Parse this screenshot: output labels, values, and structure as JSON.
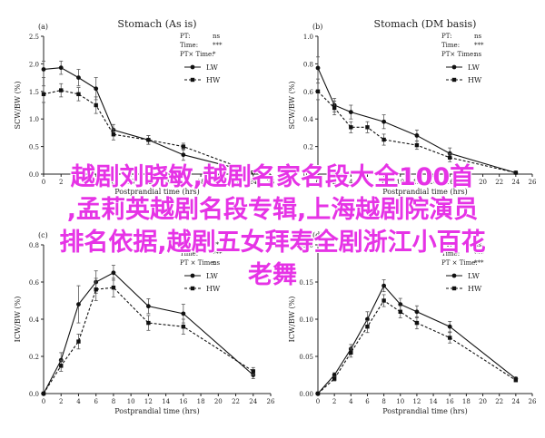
{
  "chart_data": [
    {
      "type": "line",
      "panel_label": "(a)",
      "title": "Stomach (As is)",
      "xlabel": "Postprandial time (hrs)",
      "ylabel": "SCW/BW (%)",
      "xlim": [
        0,
        26
      ],
      "ylim": [
        0,
        2.5
      ],
      "xticks": [
        0,
        2,
        4,
        6,
        8,
        10,
        12,
        14,
        16,
        18,
        20,
        22,
        24,
        26
      ],
      "yticks": [
        "0.0",
        "0.5",
        "1.0",
        "1.5",
        "2.0",
        "2.5"
      ],
      "stats": [
        {
          "label": "PT:",
          "value": "ns"
        },
        {
          "label": "Time:",
          "value": "***"
        },
        {
          "label": "PT× Time:",
          "value": "*"
        }
      ],
      "legend_position": "top-right",
      "series": [
        {
          "name": "LW",
          "style": "solid",
          "marker": "circle",
          "x": [
            0,
            2,
            4,
            6,
            8,
            12,
            16,
            24
          ],
          "y": [
            1.9,
            1.93,
            1.75,
            1.55,
            0.8,
            0.62,
            0.35,
            0.03
          ],
          "err": [
            0.15,
            0.12,
            0.15,
            0.2,
            0.1,
            0.08,
            0.1,
            0.02
          ]
        },
        {
          "name": "HW",
          "style": "dashed",
          "marker": "square",
          "x": [
            0,
            2,
            4,
            6,
            8,
            12,
            16,
            24
          ],
          "y": [
            1.45,
            1.52,
            1.45,
            1.25,
            0.72,
            0.62,
            0.5,
            0.03
          ],
          "err": [
            0.15,
            0.12,
            0.12,
            0.15,
            0.1,
            0.08,
            0.06,
            0.02
          ]
        }
      ]
    },
    {
      "type": "line",
      "panel_label": "(b)",
      "title": "Stomach (DM basis)",
      "xlabel": "Postprandial time (hrs)",
      "ylabel": "SCW/BW (%)",
      "xlim": [
        0,
        26
      ],
      "ylim": [
        0,
        1.0
      ],
      "xticks": [
        0,
        2,
        4,
        6,
        8,
        10,
        12,
        14,
        16,
        18,
        20,
        22,
        24,
        26
      ],
      "yticks": [
        "0.0",
        "0.2",
        "0.4",
        "0.6",
        "0.8",
        "1.0"
      ],
      "stats": [
        {
          "label": "PT:",
          "value": "ns"
        },
        {
          "label": "Time:",
          "value": "***"
        },
        {
          "label": "PT× Time:",
          "value": "ns"
        }
      ],
      "legend_position": "top-right",
      "series": [
        {
          "name": "LW",
          "style": "solid",
          "marker": "circle",
          "x": [
            0,
            2,
            4,
            8,
            12,
            16,
            24
          ],
          "y": [
            0.77,
            0.5,
            0.45,
            0.38,
            0.28,
            0.15,
            0.01
          ],
          "err": [
            0.08,
            0.05,
            0.05,
            0.05,
            0.04,
            0.04,
            0.01
          ]
        },
        {
          "name": "HW",
          "style": "dashed",
          "marker": "square",
          "x": [
            0,
            2,
            4,
            6,
            8,
            12,
            16,
            24
          ],
          "y": [
            0.6,
            0.48,
            0.34,
            0.34,
            0.25,
            0.21,
            0.12,
            0.01
          ],
          "err": [
            0.06,
            0.05,
            0.04,
            0.04,
            0.04,
            0.03,
            0.03,
            0.01
          ]
        }
      ]
    },
    {
      "type": "line",
      "panel_label": "(c)",
      "title": "",
      "xlabel": "Postprandial time (hrs)",
      "ylabel": "ICW/BW (%)",
      "xlim": [
        0,
        26
      ],
      "ylim": [
        0,
        0.8
      ],
      "xticks": [
        0,
        2,
        4,
        6,
        8,
        10,
        12,
        14,
        16,
        18,
        20,
        22,
        24,
        26
      ],
      "yticks": [
        "0.0",
        "0.2",
        "0.4",
        "0.6",
        "0.8"
      ],
      "stats": [
        {
          "label": "PT:",
          "value": "**"
        },
        {
          "label": "Time:",
          "value": "***"
        },
        {
          "label": "PT × Time:",
          "value": "ns"
        }
      ],
      "legend_position": "top-right",
      "series": [
        {
          "name": "LW",
          "style": "solid",
          "marker": "circle",
          "x": [
            0,
            2,
            4,
            6,
            8,
            12,
            16,
            24
          ],
          "y": [
            0.0,
            0.18,
            0.48,
            0.6,
            0.65,
            0.47,
            0.43,
            0.1
          ],
          "err": [
            0.0,
            0.04,
            0.1,
            0.06,
            0.04,
            0.04,
            0.05,
            0.02
          ]
        },
        {
          "name": "HW",
          "style": "dashed",
          "marker": "square",
          "x": [
            0,
            2,
            4,
            6,
            8,
            12,
            16,
            24
          ],
          "y": [
            0.0,
            0.15,
            0.28,
            0.56,
            0.57,
            0.38,
            0.36,
            0.12
          ],
          "err": [
            0.0,
            0.03,
            0.04,
            0.06,
            0.05,
            0.04,
            0.04,
            0.02
          ]
        }
      ]
    },
    {
      "type": "line",
      "panel_label": "(d)",
      "title": "",
      "xlabel": "Postprandial time (hrs)",
      "ylabel": "ICW/BW (%)",
      "xlim": [
        0,
        26
      ],
      "ylim": [
        0,
        0.2
      ],
      "xticks": [
        0,
        2,
        4,
        6,
        8,
        10,
        12,
        14,
        16,
        18,
        20,
        22,
        24,
        26
      ],
      "yticks": [
        "0.00",
        "0.05",
        "0.10",
        "0.15",
        "0.20"
      ],
      "stats": [
        {
          "label": "PT:",
          "value": "ns"
        },
        {
          "label": "Time:",
          "value": "***"
        },
        {
          "label": "PT × Time:",
          "value": "***"
        }
      ],
      "legend_position": "top-right",
      "series": [
        {
          "name": "LW",
          "style": "solid",
          "marker": "circle",
          "x": [
            0,
            2,
            4,
            6,
            8,
            10,
            12,
            16,
            24
          ],
          "y": [
            0.0,
            0.025,
            0.06,
            0.1,
            0.145,
            0.12,
            0.11,
            0.09,
            0.02
          ],
          "err": [
            0.0,
            0.003,
            0.006,
            0.01,
            0.008,
            0.008,
            0.008,
            0.007,
            0.002
          ]
        },
        {
          "name": "HW",
          "style": "dashed",
          "marker": "square",
          "x": [
            0,
            2,
            4,
            6,
            8,
            10,
            12,
            16,
            24
          ],
          "y": [
            0.0,
            0.02,
            0.055,
            0.09,
            0.125,
            0.11,
            0.095,
            0.075,
            0.018
          ],
          "err": [
            0.0,
            0.003,
            0.006,
            0.008,
            0.008,
            0.008,
            0.008,
            0.007,
            0.002
          ]
        }
      ]
    }
  ],
  "overlay": {
    "lines": [
      "越剧刘晓敏,越剧名家名段大全100首",
      ",孟莉英越剧名段专辑,上海越剧院演员",
      "排名依据,越剧五女拜寿全剧浙江小百花",
      "老舞"
    ]
  }
}
